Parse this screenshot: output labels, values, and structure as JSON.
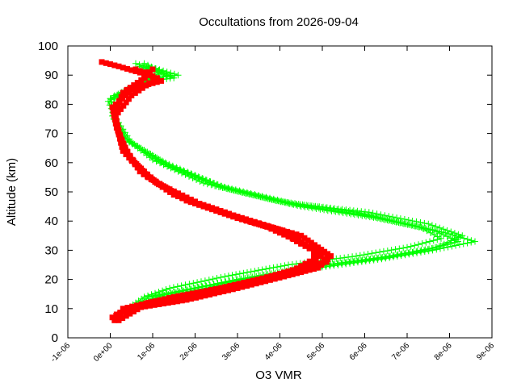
{
  "chart_data": {
    "type": "line",
    "title": "Occultations from 2026-09-04",
    "xlabel": "O3 VMR",
    "ylabel": "Altitude (km)",
    "xlim": [
      -1e-06,
      9e-06
    ],
    "ylim": [
      0,
      100
    ],
    "x_ticks": [
      -1e-06,
      0,
      1e-06,
      2e-06,
      3e-06,
      4e-06,
      5e-06,
      6e-06,
      7e-06,
      8e-06,
      9e-06
    ],
    "x_tick_labels": [
      "-1e-06",
      "0e+00",
      "1e-06",
      "2e-06",
      "3e-06",
      "4e-06",
      "5e-06",
      "6e-06",
      "7e-06",
      "8e-06",
      "9e-06"
    ],
    "y_ticks": [
      0,
      10,
      20,
      30,
      40,
      50,
      60,
      70,
      80,
      90,
      100
    ],
    "y_tick_labels": [
      "0",
      "10",
      "20",
      "30",
      "40",
      "50",
      "60",
      "70",
      "80",
      "90",
      "100"
    ],
    "grid": false,
    "legend": "none",
    "series": [
      {
        "color": "#00ff00",
        "marker": "plus",
        "profiles": [
          [
            [
              5e-07,
              10
            ],
            [
              9e-07,
              14
            ],
            [
              1.6e-06,
              16
            ],
            [
              3e-06,
              20
            ],
            [
              4.6e-06,
              24
            ],
            [
              6.2e-06,
              27
            ],
            [
              7.4e-06,
              30
            ],
            [
              8.2e-06,
              33
            ],
            [
              7.6e-06,
              37
            ],
            [
              6e-06,
              42
            ],
            [
              4.2e-06,
              46
            ],
            [
              2.5e-06,
              52
            ],
            [
              1.2e-06,
              60
            ],
            [
              4e-07,
              68
            ],
            [
              1e-07,
              75
            ],
            [
              0.0,
              82
            ],
            [
              8e-07,
              88
            ],
            [
              1.4e-06,
              90
            ],
            [
              8e-07,
              94
            ]
          ],
          [
            [
              6e-07,
              10
            ],
            [
              1e-06,
              13
            ],
            [
              1.9e-06,
              16
            ],
            [
              3.3e-06,
              20
            ],
            [
              4.9e-06,
              24
            ],
            [
              6.4e-06,
              27
            ],
            [
              7.6e-06,
              30
            ],
            [
              8.6e-06,
              33
            ],
            [
              7.9e-06,
              36
            ],
            [
              6.3e-06,
              41
            ],
            [
              4.5e-06,
              45
            ],
            [
              2.8e-06,
              51
            ],
            [
              1.4e-06,
              59
            ],
            [
              5e-07,
              67
            ],
            [
              1e-07,
              76
            ],
            [
              -5e-08,
              81
            ],
            [
              1e-06,
              89
            ],
            [
              1.6e-06,
              90
            ],
            [
              9e-07,
              93
            ]
          ],
          [
            [
              4e-07,
              10
            ],
            [
              8e-07,
              14
            ],
            [
              1.4e-06,
              17
            ],
            [
              2.7e-06,
              21
            ],
            [
              4.2e-06,
              25
            ],
            [
              5.8e-06,
              28
            ],
            [
              7e-06,
              31
            ],
            [
              7.8e-06,
              34
            ],
            [
              7.3e-06,
              38
            ],
            [
              5.8e-06,
              43
            ],
            [
              3.9e-06,
              47
            ],
            [
              2.2e-06,
              53
            ],
            [
              1e-06,
              61
            ],
            [
              3e-07,
              69
            ],
            [
              5e-08,
              76
            ],
            [
              1e-07,
              83
            ],
            [
              7e-07,
              87
            ],
            [
              1.2e-06,
              91
            ],
            [
              6e-07,
              94
            ]
          ],
          [
            [
              7e-07,
              11
            ],
            [
              1.1e-06,
              14
            ],
            [
              2e-06,
              17
            ],
            [
              3.5e-06,
              21
            ],
            [
              5.1e-06,
              25
            ],
            [
              6.6e-06,
              28
            ],
            [
              7.7e-06,
              31
            ],
            [
              8.3e-06,
              35
            ],
            [
              7.5e-06,
              39
            ],
            [
              6.1e-06,
              43
            ],
            [
              4.3e-06,
              46
            ],
            [
              2.6e-06,
              52
            ],
            [
              1.3e-06,
              60
            ],
            [
              4.5e-07,
              67
            ],
            [
              8e-08,
              75
            ],
            [
              2e-08,
              82
            ],
            [
              9e-07,
              88
            ],
            [
              1.5e-06,
              89
            ],
            [
              7e-07,
              93
            ]
          ]
        ]
      },
      {
        "color": "#ff0000",
        "marker": "square",
        "profiles": [
          [
            [
              1e-07,
              6
            ],
            [
              3e-07,
              10
            ],
            [
              1.5e-06,
              14
            ],
            [
              2.6e-06,
              17
            ],
            [
              3.8e-06,
              21
            ],
            [
              4.7e-06,
              25
            ],
            [
              5e-06,
              29
            ],
            [
              4.6e-06,
              32
            ],
            [
              4.2e-06,
              36
            ],
            [
              3e-06,
              41
            ],
            [
              1.8e-06,
              47
            ],
            [
              9e-07,
              55
            ],
            [
              4e-07,
              63
            ],
            [
              2e-07,
              70
            ],
            [
              1e-07,
              77
            ],
            [
              3e-07,
              84
            ],
            [
              9e-07,
              90
            ],
            [
              2e-07,
              93
            ],
            [
              -2e-07,
              94.5
            ]
          ],
          [
            [
              5e-08,
              7
            ],
            [
              5e-07,
              10
            ],
            [
              1.8e-06,
              13
            ],
            [
              3e-06,
              17
            ],
            [
              4.1e-06,
              21
            ],
            [
              4.9e-06,
              24
            ],
            [
              5.2e-06,
              28
            ],
            [
              4.9e-06,
              31
            ],
            [
              4.5e-06,
              35
            ],
            [
              3.3e-06,
              40
            ],
            [
              2.1e-06,
              46
            ],
            [
              1.1e-06,
              53
            ],
            [
              5e-07,
              61
            ],
            [
              2.5e-07,
              68
            ],
            [
              1.2e-07,
              76
            ],
            [
              5e-07,
              83
            ],
            [
              1.1e-06,
              89
            ],
            [
              6e-07,
              92
            ]
          ],
          [
            [
              1.5e-07,
              8
            ],
            [
              7e-07,
              11
            ],
            [
              2.1e-06,
              15
            ],
            [
              3.3e-06,
              19
            ],
            [
              4.3e-06,
              23
            ],
            [
              4.8e-06,
              27
            ],
            [
              4.8e-06,
              30
            ],
            [
              4.3e-06,
              34
            ],
            [
              3.7e-06,
              38
            ],
            [
              2.6e-06,
              43
            ],
            [
              1.5e-06,
              49
            ],
            [
              7e-07,
              57
            ],
            [
              3.5e-07,
              65
            ],
            [
              1.5e-07,
              72
            ],
            [
              5e-08,
              79
            ],
            [
              6e-07,
              86
            ],
            [
              1e-06,
              92
            ]
          ],
          [
            [
              2e-07,
              6
            ],
            [
              9e-07,
              12
            ],
            [
              2.3e-06,
              16
            ],
            [
              3.5e-06,
              20
            ],
            [
              4.5e-06,
              24
            ],
            [
              5.1e-06,
              26
            ],
            [
              4.9e-06,
              29
            ],
            [
              4.4e-06,
              33
            ],
            [
              4e-06,
              37
            ],
            [
              2.9e-06,
              42
            ],
            [
              1.7e-06,
              48
            ],
            [
              8e-07,
              56
            ],
            [
              3e-07,
              64
            ],
            [
              1.8e-07,
              71
            ],
            [
              1e-07,
              78
            ],
            [
              4e-07,
              85
            ],
            [
              1.2e-06,
              88
            ],
            [
              8e-07,
              91
            ]
          ]
        ]
      }
    ]
  }
}
